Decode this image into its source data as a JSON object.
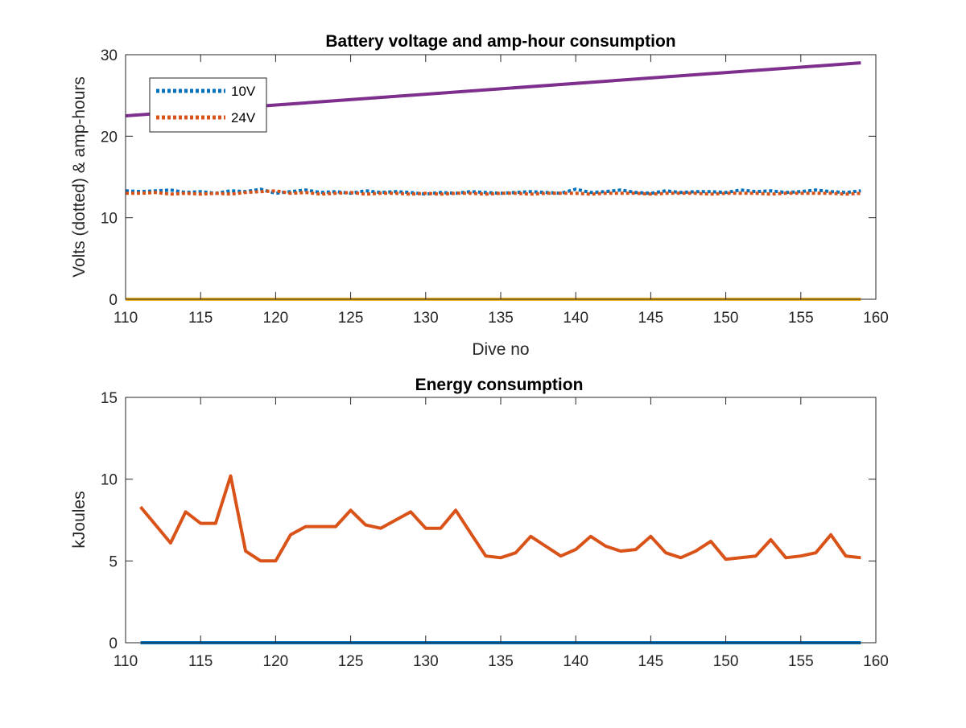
{
  "chart_data": [
    {
      "type": "line",
      "title": "Battery voltage and amp-hour consumption",
      "xlabel": "Dive no",
      "ylabel": "Volts (dotted) & amp-hours",
      "xlim": [
        110,
        160
      ],
      "ylim": [
        0,
        30
      ],
      "xticks": [
        "110",
        "115",
        "120",
        "125",
        "130",
        "135",
        "140",
        "145",
        "150",
        "155",
        "160"
      ],
      "yticks": [
        "0",
        "10",
        "20",
        "30"
      ],
      "grid": false,
      "legend_position": "top-left",
      "series": [
        {
          "name": "10V",
          "style": "dotted",
          "color": "#0072BD",
          "x": [
            110,
            111,
            112,
            113,
            114,
            115,
            116,
            117,
            118,
            119,
            120,
            121,
            122,
            123,
            124,
            125,
            126,
            127,
            128,
            129,
            130,
            131,
            132,
            133,
            134,
            135,
            136,
            137,
            138,
            139,
            140,
            141,
            142,
            143,
            144,
            145,
            146,
            147,
            148,
            149,
            150,
            151,
            152,
            153,
            154,
            155,
            156,
            157,
            158,
            159
          ],
          "y": [
            13.3,
            13.2,
            13.3,
            13.4,
            13.1,
            13.2,
            13.0,
            13.3,
            13.2,
            13.5,
            13.0,
            13.2,
            13.4,
            13.1,
            13.2,
            13.0,
            13.3,
            13.1,
            13.2,
            13.1,
            12.9,
            13.1,
            13.0,
            13.2,
            13.1,
            13.0,
            13.1,
            13.2,
            13.1,
            13.0,
            13.5,
            13.1,
            13.2,
            13.4,
            13.1,
            13.0,
            13.3,
            13.1,
            13.2,
            13.2,
            13.1,
            13.4,
            13.2,
            13.3,
            13.1,
            13.2,
            13.4,
            13.2,
            13.1,
            13.3
          ]
        },
        {
          "name": "24V",
          "style": "dotted",
          "color": "#D95319",
          "x": [
            110,
            111,
            112,
            113,
            114,
            115,
            116,
            117,
            118,
            119,
            120,
            121,
            122,
            123,
            124,
            125,
            126,
            127,
            128,
            129,
            130,
            131,
            132,
            133,
            134,
            135,
            136,
            137,
            138,
            139,
            140,
            141,
            142,
            143,
            144,
            145,
            146,
            147,
            148,
            149,
            150,
            151,
            152,
            153,
            154,
            155,
            156,
            157,
            158,
            159
          ],
          "y": [
            13.0,
            13.0,
            13.1,
            12.9,
            13.0,
            12.9,
            13.0,
            12.9,
            13.1,
            13.2,
            13.3,
            13.0,
            13.1,
            12.9,
            13.0,
            13.1,
            12.9,
            13.0,
            13.0,
            12.9,
            13.0,
            12.9,
            13.0,
            13.0,
            12.9,
            13.0,
            13.0,
            12.9,
            13.0,
            13.0,
            13.0,
            12.9,
            13.0,
            13.0,
            13.0,
            12.9,
            13.0,
            13.0,
            13.0,
            12.9,
            13.0,
            13.0,
            13.0,
            12.9,
            13.0,
            13.0,
            13.0,
            13.0,
            12.9,
            13.0
          ]
        },
        {
          "style": "solid",
          "color": "#7E2F8E",
          "x": [
            110,
            159
          ],
          "y": [
            22.5,
            29.0
          ]
        },
        {
          "style": "solid",
          "color": "#EDB120",
          "x": [
            110,
            159
          ],
          "y": [
            0,
            0
          ]
        }
      ]
    },
    {
      "type": "line",
      "title": "Energy consumption",
      "xlabel": "",
      "ylabel": "kJoules",
      "xlim": [
        110,
        160
      ],
      "ylim": [
        0,
        15
      ],
      "xticks": [
        "110",
        "115",
        "120",
        "125",
        "130",
        "135",
        "140",
        "145",
        "150",
        "155",
        "160"
      ],
      "yticks": [
        "0",
        "5",
        "10",
        "15"
      ],
      "grid": false,
      "series": [
        {
          "style": "solid",
          "color": "#D95319",
          "x": [
            111,
            112,
            113,
            114,
            115,
            116,
            117,
            118,
            119,
            120,
            121,
            122,
            123,
            124,
            125,
            126,
            127,
            128,
            129,
            130,
            131,
            132,
            133,
            134,
            135,
            136,
            137,
            138,
            139,
            140,
            141,
            142,
            143,
            144,
            145,
            146,
            147,
            148,
            149,
            150,
            151,
            152,
            153,
            154,
            155,
            156,
            157,
            158,
            159
          ],
          "y": [
            8.3,
            7.2,
            6.1,
            8.0,
            7.3,
            7.3,
            10.2,
            5.6,
            5.0,
            5.0,
            6.6,
            7.1,
            7.1,
            7.1,
            8.1,
            7.2,
            7.0,
            7.5,
            8.0,
            7.0,
            7.0,
            8.1,
            6.7,
            5.3,
            5.2,
            5.5,
            6.5,
            5.9,
            5.3,
            5.7,
            6.5,
            5.9,
            5.6,
            5.7,
            6.5,
            5.5,
            5.2,
            5.6,
            6.2,
            5.1,
            5.2,
            5.3,
            6.3,
            5.2,
            5.3,
            5.5,
            6.6,
            5.3,
            5.2
          ]
        },
        {
          "style": "solid",
          "color": "#0072BD",
          "x": [
            111,
            159
          ],
          "y": [
            0,
            0
          ]
        }
      ]
    }
  ]
}
